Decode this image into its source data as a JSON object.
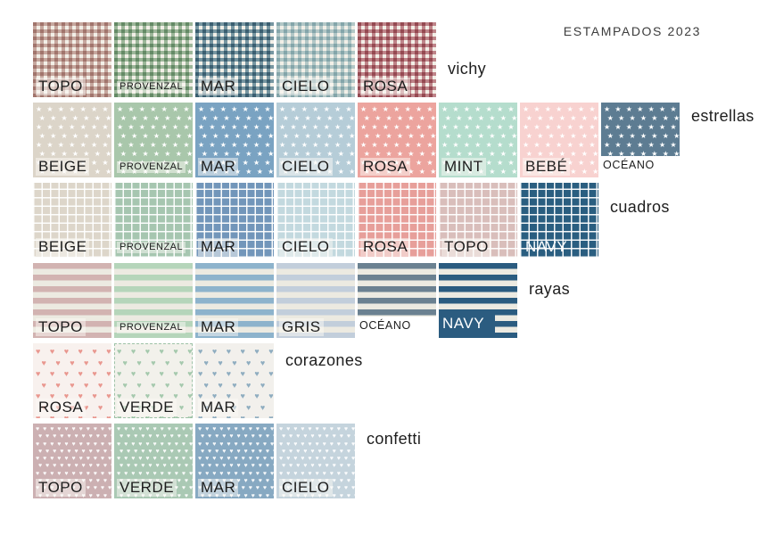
{
  "title": "ESTAMPADOS 2023",
  "glyphs": {
    "star": "★",
    "heart": "♥"
  },
  "base_colors": {
    "cream": "#f2efe7",
    "stripe_base": "#eceae1",
    "ink": "#1c1c1c",
    "white": "#ffffff"
  },
  "rows": [
    {
      "name": "vichy",
      "label": "vichy",
      "type": "vichy",
      "swatches": [
        {
          "label": "TOPO",
          "color": "#d0b2ae"
        },
        {
          "label": "PROVENZAL",
          "color": "#a4c2a9",
          "small": true
        },
        {
          "label": "MAR",
          "color": "#7da0b2"
        },
        {
          "label": "CIELO",
          "color": "#bcd4db"
        },
        {
          "label": "ROSA",
          "color": "#c88d97"
        }
      ]
    },
    {
      "name": "estrellas",
      "label": "estrellas",
      "type": "stars",
      "swatches": [
        {
          "label": "BEIGE",
          "color": "#dcd5c9"
        },
        {
          "label": "PROVENZAL",
          "color": "#a9c7ab",
          "small": true
        },
        {
          "label": "MAR",
          "color": "#7aa3c2"
        },
        {
          "label": "CIELO",
          "color": "#b6cdd8"
        },
        {
          "label": "ROSA",
          "color": "#eca49e"
        },
        {
          "label": "MINT",
          "color": "#b5ddcd"
        },
        {
          "label": "BEBÉ",
          "color": "#f8d2d0"
        },
        {
          "label": "OCÉANO",
          "color": "#5d7c92",
          "label_below": true
        }
      ]
    },
    {
      "name": "cuadros",
      "label": "cuadros",
      "type": "grid",
      "swatches": [
        {
          "label": "BEIGE",
          "color": "#ddd6ca"
        },
        {
          "label": "PROVENZAL",
          "color": "#a6c6b0",
          "small": true
        },
        {
          "label": "MAR",
          "color": "#7296ba"
        },
        {
          "label": "CIELO",
          "color": "#c3d9df"
        },
        {
          "label": "ROSA",
          "color": "#e79f9a"
        },
        {
          "label": "TOPO",
          "color": "#d9bebb"
        },
        {
          "label": "NAVY",
          "color": "#2a5e80",
          "white_text": true
        }
      ]
    },
    {
      "name": "rayas",
      "label": "rayas",
      "type": "stripes",
      "swatches": [
        {
          "label": "TOPO",
          "color": "#d2b3b1"
        },
        {
          "label": "PROVENZAL",
          "color": "#b5d5ba",
          "small": true
        },
        {
          "label": "MAR",
          "color": "#8db3cc"
        },
        {
          "label": "GRIS",
          "color": "#c2cedb"
        },
        {
          "label": "OCÉANO",
          "color": "#6b8191",
          "label_below": true
        },
        {
          "label": "NAVY",
          "color": "#2b5c80",
          "white_text": true,
          "chip": true
        }
      ]
    },
    {
      "name": "corazones",
      "label": "corazones",
      "type": "hearts",
      "swatches": [
        {
          "label": "ROSA",
          "color": "#e9978f",
          "bg": "#f8f1ee"
        },
        {
          "label": "VERDE",
          "color": "#a5c9ad",
          "bg": "#f2f1eb",
          "dashed": true
        },
        {
          "label": "MAR",
          "color": "#8fadc0",
          "bg": "#f2f0ec"
        }
      ]
    },
    {
      "name": "confetti",
      "label": "confetti",
      "type": "confetti",
      "swatches": [
        {
          "label": "TOPO",
          "color": "#ccb0b2"
        },
        {
          "label": "VERDE",
          "color": "#aac9b4"
        },
        {
          "label": "MAR",
          "color": "#87a9c2"
        },
        {
          "label": "CIELO",
          "color": "#c5d4dd"
        }
      ]
    }
  ]
}
